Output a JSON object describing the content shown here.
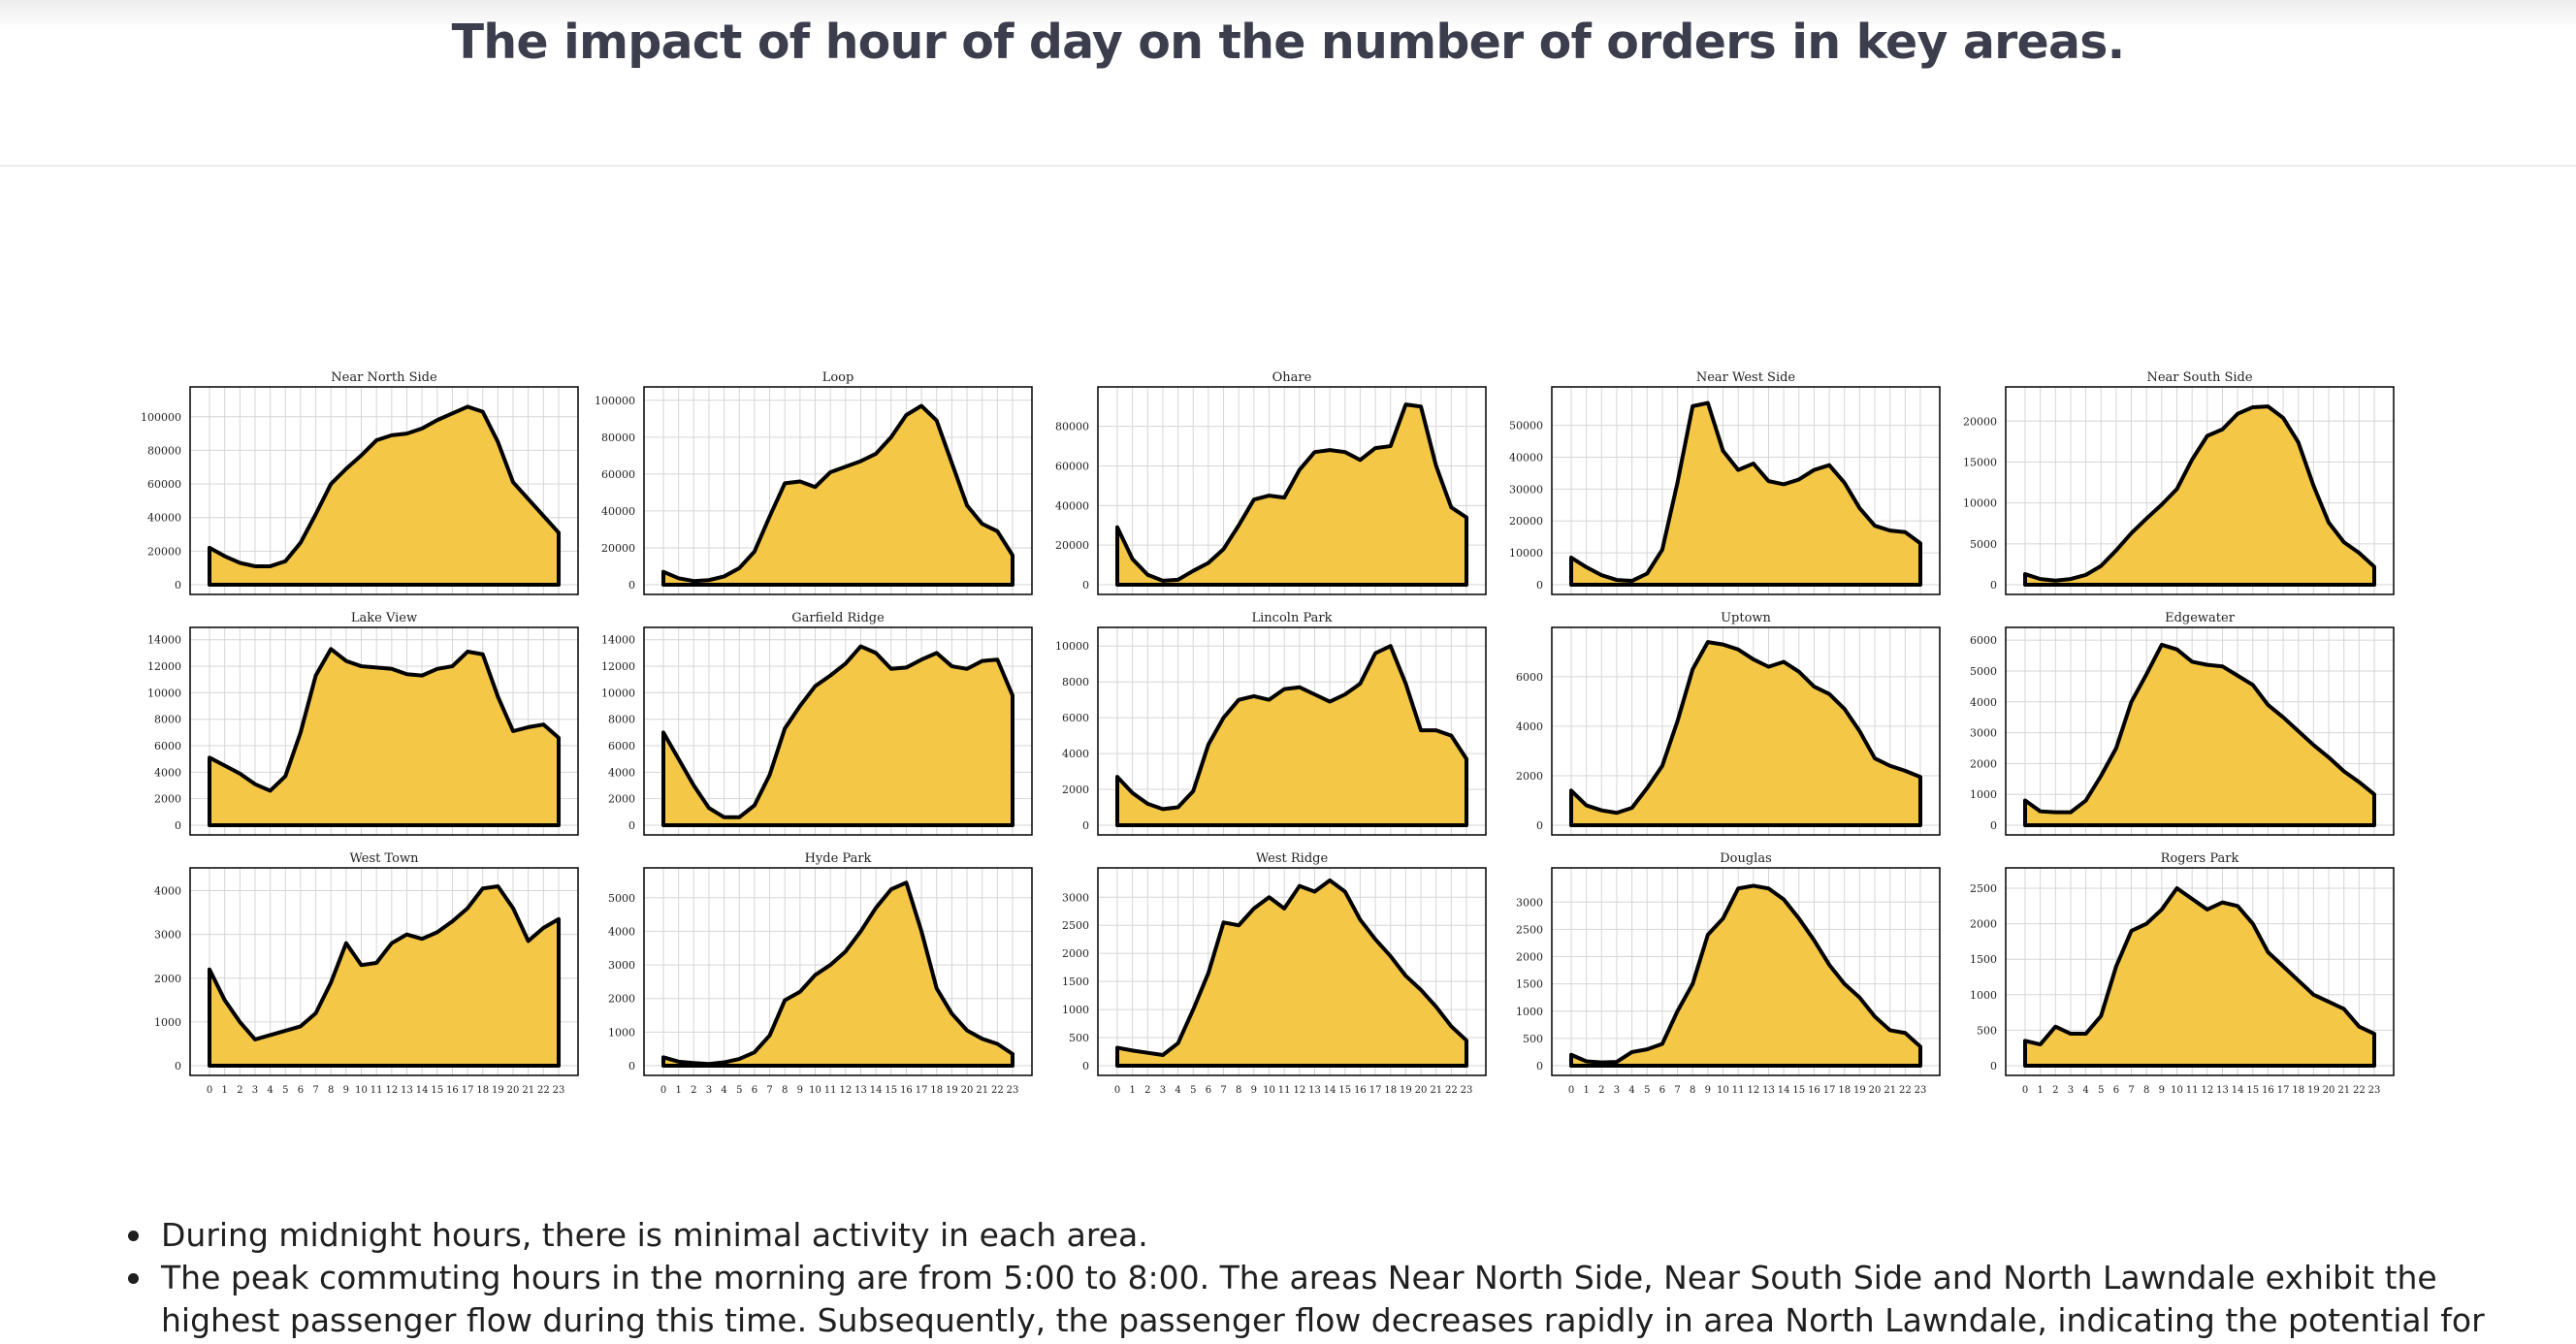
{
  "page": {
    "title": "The impact of hour of day on the number of orders in key areas."
  },
  "notes": [
    "During midnight hours, there is minimal activity in each area.",
    "The peak commuting hours in the morning are from 5:00 to 8:00. The areas Near North Side, Near South Side and North Lawndale exhibit the highest passenger flow during this time. Subsequently, the passenger flow decreases rapidly in area North Lawndale, indicating the potential for"
  ],
  "colors": {
    "fill": "#f5c747",
    "line": "#000000",
    "grid": "#d6d6d6",
    "title_text": "#3d3e4d"
  },
  "chart_data": [
    {
      "type": "area",
      "title": "Near North Side",
      "x": [
        0,
        1,
        2,
        3,
        4,
        5,
        6,
        7,
        8,
        9,
        10,
        11,
        12,
        13,
        14,
        15,
        16,
        17,
        18,
        19,
        20,
        21,
        22,
        23
      ],
      "y": [
        22000,
        17000,
        13000,
        11000,
        11000,
        14000,
        25000,
        42000,
        60000,
        69000,
        77000,
        86000,
        89000,
        90000,
        93000,
        98000,
        102000,
        106000,
        103000,
        85000,
        61000,
        51000,
        41000,
        31000
      ],
      "yticks": [
        0,
        20000,
        40000,
        60000,
        80000,
        100000
      ],
      "ylim": [
        0,
        112000
      ],
      "show_x_ticks": false
    },
    {
      "type": "area",
      "title": "Loop",
      "x": [
        0,
        1,
        2,
        3,
        4,
        5,
        6,
        7,
        8,
        9,
        10,
        11,
        12,
        13,
        14,
        15,
        16,
        17,
        18,
        19,
        20,
        21,
        22,
        23
      ],
      "y": [
        7000,
        3500,
        2000,
        2500,
        4500,
        9000,
        18000,
        37000,
        55000,
        56000,
        53000,
        61000,
        64000,
        67000,
        71000,
        80000,
        92000,
        97000,
        89000,
        66000,
        43000,
        33000,
        29000,
        16000
      ],
      "yticks": [
        0,
        20000,
        40000,
        60000,
        80000,
        100000
      ],
      "ylim": [
        0,
        102000
      ],
      "show_x_ticks": false
    },
    {
      "type": "area",
      "title": "Ohare",
      "x": [
        0,
        1,
        2,
        3,
        4,
        5,
        6,
        7,
        8,
        9,
        10,
        11,
        12,
        13,
        14,
        15,
        16,
        17,
        18,
        19,
        20,
        21,
        22,
        23
      ],
      "y": [
        29000,
        13000,
        5000,
        2000,
        2500,
        7000,
        11000,
        18000,
        30000,
        43000,
        45000,
        44000,
        58000,
        67000,
        68000,
        67000,
        63000,
        69000,
        70000,
        91000,
        90000,
        60000,
        39000,
        34000
      ],
      "yticks": [
        0,
        20000,
        40000,
        60000,
        80000
      ],
      "ylim": [
        0,
        95000
      ],
      "show_x_ticks": false
    },
    {
      "type": "area",
      "title": "Near West Side",
      "x": [
        0,
        1,
        2,
        3,
        4,
        5,
        6,
        7,
        8,
        9,
        10,
        11,
        12,
        13,
        14,
        15,
        16,
        17,
        18,
        19,
        20,
        21,
        22,
        23
      ],
      "y": [
        8500,
        5500,
        3000,
        1500,
        1200,
        3500,
        11000,
        32000,
        56000,
        57000,
        42000,
        36000,
        38000,
        32500,
        31500,
        33000,
        36000,
        37500,
        32000,
        24000,
        18500,
        17000,
        16500,
        13000
      ],
      "yticks": [
        0,
        10000,
        20000,
        30000,
        40000,
        50000
      ],
      "ylim": [
        0,
        59000
      ],
      "show_x_ticks": false
    },
    {
      "type": "area",
      "title": "Near South Side",
      "x": [
        0,
        1,
        2,
        3,
        4,
        5,
        6,
        7,
        8,
        9,
        10,
        11,
        12,
        13,
        14,
        15,
        16,
        17,
        18,
        19,
        20,
        21,
        22,
        23
      ],
      "y": [
        1300,
        700,
        500,
        700,
        1200,
        2300,
        4200,
        6300,
        8100,
        9800,
        11700,
        15300,
        18200,
        19000,
        20900,
        21700,
        21800,
        20400,
        17400,
        12100,
        7600,
        5200,
        3900,
        2200
      ],
      "yticks": [
        0,
        5000,
        10000,
        15000,
        20000
      ],
      "ylim": [
        0,
        23000
      ],
      "show_x_ticks": false
    },
    {
      "type": "area",
      "title": "Lake View",
      "x": [
        0,
        1,
        2,
        3,
        4,
        5,
        6,
        7,
        8,
        9,
        10,
        11,
        12,
        13,
        14,
        15,
        16,
        17,
        18,
        19,
        20,
        21,
        22,
        23
      ],
      "y": [
        5100,
        4500,
        3900,
        3100,
        2600,
        3700,
        7000,
        11300,
        13300,
        12400,
        12000,
        11900,
        11800,
        11400,
        11300,
        11800,
        12000,
        13100,
        12900,
        9700,
        7100,
        7400,
        7600,
        6600
      ],
      "yticks": [
        0,
        2000,
        4000,
        6000,
        8000,
        10000,
        12000,
        14000
      ],
      "ylim": [
        0,
        14200
      ],
      "show_x_ticks": false
    },
    {
      "type": "area",
      "title": "Garfield Ridge",
      "x": [
        0,
        1,
        2,
        3,
        4,
        5,
        6,
        7,
        8,
        9,
        10,
        11,
        12,
        13,
        14,
        15,
        16,
        17,
        18,
        19,
        20,
        21,
        22,
        23
      ],
      "y": [
        7000,
        5000,
        3000,
        1300,
        600,
        600,
        1500,
        3800,
        7300,
        9000,
        10500,
        11300,
        12200,
        13500,
        13000,
        11800,
        11900,
        12500,
        13000,
        12000,
        11800,
        12400,
        12500,
        9800
      ],
      "yticks": [
        0,
        2000,
        4000,
        6000,
        8000,
        10000,
        12000,
        14000
      ],
      "ylim": [
        0,
        14200
      ],
      "show_x_ticks": false
    },
    {
      "type": "area",
      "title": "Lincoln Park",
      "x": [
        0,
        1,
        2,
        3,
        4,
        5,
        6,
        7,
        8,
        9,
        10,
        11,
        12,
        13,
        14,
        15,
        16,
        17,
        18,
        19,
        20,
        21,
        22,
        23
      ],
      "y": [
        2700,
        1800,
        1200,
        900,
        1000,
        1900,
        4500,
        6000,
        7000,
        7200,
        7000,
        7600,
        7700,
        7300,
        6900,
        7300,
        7900,
        9600,
        10000,
        7900,
        5300,
        5300,
        5000,
        3700
      ],
      "yticks": [
        0,
        2000,
        4000,
        6000,
        8000,
        10000
      ],
      "ylim": [
        0,
        10500
      ],
      "show_x_ticks": false
    },
    {
      "type": "area",
      "title": "Uptown",
      "x": [
        0,
        1,
        2,
        3,
        4,
        5,
        6,
        7,
        8,
        9,
        10,
        11,
        12,
        13,
        14,
        15,
        16,
        17,
        18,
        19,
        20,
        21,
        22,
        23
      ],
      "y": [
        1400,
        800,
        600,
        500,
        700,
        1500,
        2400,
        4200,
        6300,
        7400,
        7300,
        7100,
        6700,
        6400,
        6600,
        6200,
        5600,
        5300,
        4700,
        3800,
        2700,
        2400,
        2200,
        1950
      ],
      "yticks": [
        0,
        2000,
        4000,
        6000
      ],
      "ylim": [
        0,
        7600
      ],
      "show_x_ticks": false
    },
    {
      "type": "area",
      "title": "Edgewater",
      "x": [
        0,
        1,
        2,
        3,
        4,
        5,
        6,
        7,
        8,
        9,
        10,
        11,
        12,
        13,
        14,
        15,
        16,
        17,
        18,
        19,
        20,
        21,
        22,
        23
      ],
      "y": [
        800,
        450,
        420,
        420,
        800,
        1600,
        2500,
        4000,
        4900,
        5850,
        5700,
        5300,
        5200,
        5150,
        4850,
        4550,
        3900,
        3500,
        3050,
        2600,
        2200,
        1750,
        1400,
        1000
      ],
      "yticks": [
        0,
        1000,
        2000,
        3000,
        4000,
        5000,
        6000
      ],
      "ylim": [
        0,
        6100
      ],
      "show_x_ticks": false
    },
    {
      "type": "area",
      "title": "West Town",
      "x": [
        0,
        1,
        2,
        3,
        4,
        5,
        6,
        7,
        8,
        9,
        10,
        11,
        12,
        13,
        14,
        15,
        16,
        17,
        18,
        19,
        20,
        21,
        22,
        23
      ],
      "y": [
        2200,
        1500,
        1000,
        600,
        700,
        800,
        900,
        1200,
        1900,
        2800,
        2300,
        2350,
        2800,
        3000,
        2900,
        3050,
        3300,
        3600,
        4050,
        4100,
        3600,
        2850,
        3150,
        3350
      ],
      "yticks": [
        0,
        1000,
        2000,
        3000,
        4000
      ],
      "ylim": [
        0,
        4300
      ],
      "show_x_ticks": true
    },
    {
      "type": "area",
      "title": "Hyde Park",
      "x": [
        0,
        1,
        2,
        3,
        4,
        5,
        6,
        7,
        8,
        9,
        10,
        11,
        12,
        13,
        14,
        15,
        16,
        17,
        18,
        19,
        20,
        21,
        22,
        23
      ],
      "y": [
        250,
        120,
        80,
        50,
        100,
        200,
        400,
        900,
        1950,
        2200,
        2700,
        3000,
        3400,
        4000,
        4700,
        5250,
        5450,
        4000,
        2300,
        1550,
        1050,
        800,
        650,
        350
      ],
      "yticks": [
        0,
        1000,
        2000,
        3000,
        4000,
        5000
      ],
      "ylim": [
        0,
        5600
      ],
      "show_x_ticks": true
    },
    {
      "type": "area",
      "title": "West Ridge",
      "x": [
        0,
        1,
        2,
        3,
        4,
        5,
        6,
        7,
        8,
        9,
        10,
        11,
        12,
        13,
        14,
        15,
        16,
        17,
        18,
        19,
        20,
        21,
        22,
        23
      ],
      "y": [
        320,
        270,
        230,
        190,
        400,
        1000,
        1650,
        2550,
        2500,
        2800,
        3000,
        2800,
        3200,
        3100,
        3300,
        3100,
        2600,
        2250,
        1950,
        1600,
        1350,
        1050,
        700,
        450
      ],
      "yticks": [
        0,
        500,
        1000,
        1500,
        2000,
        2500,
        3000
      ],
      "ylim": [
        0,
        3350
      ],
      "show_x_ticks": true
    },
    {
      "type": "area",
      "title": "Douglas",
      "x": [
        0,
        1,
        2,
        3,
        4,
        5,
        6,
        7,
        8,
        9,
        10,
        11,
        12,
        13,
        14,
        15,
        16,
        17,
        18,
        19,
        20,
        21,
        22,
        23
      ],
      "y": [
        200,
        80,
        60,
        70,
        250,
        300,
        400,
        1000,
        1500,
        2400,
        2700,
        3250,
        3300,
        3250,
        3050,
        2700,
        2300,
        1850,
        1500,
        1250,
        900,
        650,
        600,
        350
      ],
      "yticks": [
        0,
        500,
        1000,
        1500,
        2000,
        2500,
        3000
      ],
      "ylim": [
        0,
        3450
      ],
      "show_x_ticks": true
    },
    {
      "type": "area",
      "title": "Rogers Park",
      "x": [
        0,
        1,
        2,
        3,
        4,
        5,
        6,
        7,
        8,
        9,
        10,
        11,
        12,
        13,
        14,
        15,
        16,
        17,
        18,
        19,
        20,
        21,
        22,
        23
      ],
      "y": [
        350,
        300,
        550,
        450,
        450,
        700,
        1400,
        1900,
        2000,
        2200,
        2500,
        2350,
        2200,
        2300,
        2250,
        2000,
        1600,
        1400,
        1200,
        1000,
        900,
        800,
        550,
        450
      ],
      "yticks": [
        0,
        500,
        1000,
        1500,
        2000,
        2500
      ],
      "ylim": [
        0,
        2650
      ],
      "show_x_ticks": true
    }
  ]
}
